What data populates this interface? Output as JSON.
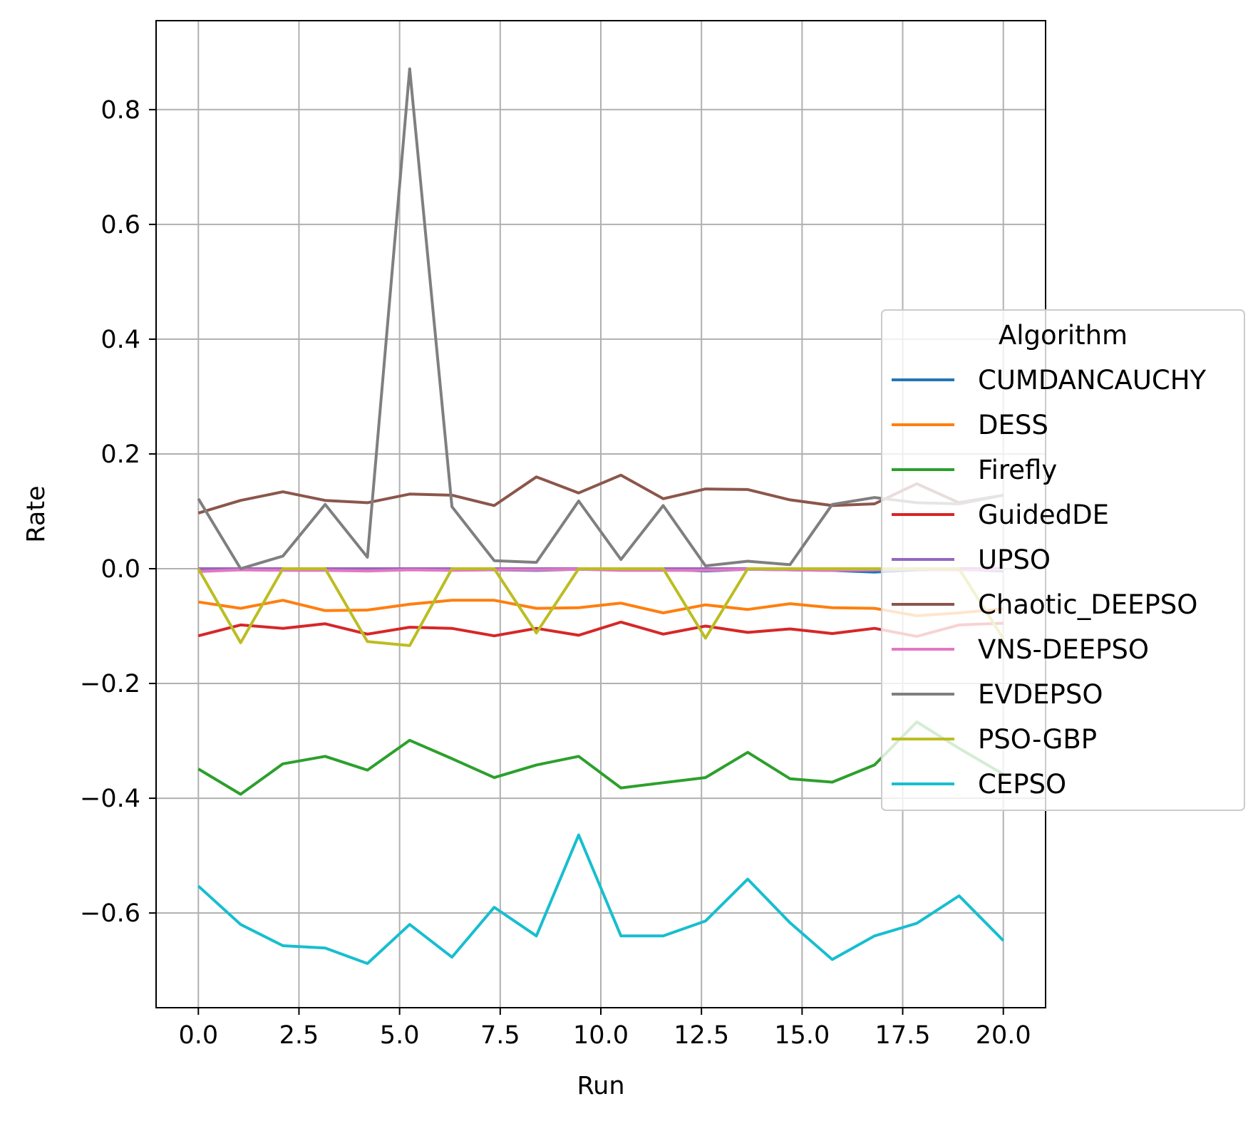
{
  "chart_data": {
    "type": "line",
    "xlabel": "Run",
    "ylabel": "Rate",
    "xlim": [
      -1.05,
      21.05
    ],
    "ylim": [
      -0.765,
      0.955
    ],
    "xticks": [
      0.0,
      2.5,
      5.0,
      7.5,
      10.0,
      12.5,
      15.0,
      17.5,
      20.0
    ],
    "xtick_labels": [
      "0.0",
      "2.5",
      "5.0",
      "7.5",
      "10.0",
      "12.5",
      "15.0",
      "17.5",
      "20.0"
    ],
    "yticks": [
      -0.6,
      -0.4,
      -0.2,
      0.0,
      0.2,
      0.4,
      0.6,
      0.8
    ],
    "ytick_labels": [
      "−0.6",
      "−0.4",
      "−0.2",
      "0.0",
      "0.2",
      "0.4",
      "0.6",
      "0.8"
    ],
    "grid": true,
    "legend": {
      "title": "Algorithm",
      "placement": "center-right"
    },
    "x": [
      0,
      1.05,
      2.1,
      3.15,
      4.2,
      5.25,
      6.3,
      7.35,
      8.4,
      9.45,
      10.5,
      11.55,
      12.6,
      13.65,
      14.7,
      15.75,
      16.8,
      17.85,
      18.9,
      20.0
    ],
    "series": [
      {
        "name": "CUMDANCAUCHY",
        "color": "#1f77b4",
        "values": [
          -0.002,
          -0.001,
          -0.002,
          -0.001,
          -0.002,
          0.0,
          -0.001,
          -0.002,
          -0.003,
          -0.001,
          -0.002,
          -0.001,
          -0.004,
          -0.001,
          -0.002,
          -0.003,
          -0.006,
          -0.002,
          -0.001,
          -0.004
        ]
      },
      {
        "name": "DESS",
        "color": "#ff7f0e",
        "values": [
          -0.058,
          -0.069,
          -0.055,
          -0.073,
          -0.072,
          -0.062,
          -0.055,
          -0.055,
          -0.069,
          -0.068,
          -0.06,
          -0.077,
          -0.063,
          -0.071,
          -0.061,
          -0.068,
          -0.069,
          -0.082,
          -0.077,
          -0.07
        ]
      },
      {
        "name": "Firefly",
        "color": "#2ca02c",
        "values": [
          -0.349,
          -0.393,
          -0.34,
          -0.327,
          -0.351,
          -0.299,
          -0.331,
          -0.364,
          -0.342,
          -0.327,
          -0.382,
          -0.373,
          -0.364,
          -0.32,
          -0.366,
          -0.372,
          -0.342,
          -0.267,
          -0.313,
          -0.358
        ]
      },
      {
        "name": "GuidedDE",
        "color": "#d62728",
        "values": [
          -0.117,
          -0.098,
          -0.104,
          -0.096,
          -0.114,
          -0.102,
          -0.104,
          -0.117,
          -0.104,
          -0.116,
          -0.093,
          -0.114,
          -0.1,
          -0.111,
          -0.105,
          -0.113,
          -0.104,
          -0.118,
          -0.098,
          -0.095
        ]
      },
      {
        "name": "UPSO",
        "color": "#9467bd",
        "values": [
          0.0,
          0.0,
          0.0,
          0.0,
          0.0,
          0.0,
          0.0,
          0.0,
          0.0,
          0.0,
          0.0,
          0.0,
          0.0,
          0.0,
          0.0,
          0.0,
          0.0,
          0.0,
          0.0,
          0.0
        ]
      },
      {
        "name": "Chaotic_DEEPSO",
        "color": "#8c564b",
        "values": [
          0.097,
          0.119,
          0.134,
          0.119,
          0.115,
          0.13,
          0.128,
          0.11,
          0.16,
          0.132,
          0.163,
          0.122,
          0.139,
          0.138,
          0.12,
          0.11,
          0.113,
          0.148,
          0.115,
          0.128
        ]
      },
      {
        "name": "VNS-DEEPSO",
        "color": "#e377c2",
        "values": [
          -0.005,
          -0.002,
          -0.003,
          -0.003,
          -0.004,
          -0.002,
          -0.003,
          -0.002,
          -0.002,
          -0.001,
          -0.003,
          -0.003,
          -0.003,
          -0.001,
          -0.002,
          -0.003,
          -0.002,
          -0.001,
          -0.002,
          -0.002
        ]
      },
      {
        "name": "EVDEPSO",
        "color": "#7f7f7f",
        "values": [
          0.122,
          0.0,
          0.022,
          0.112,
          0.02,
          0.871,
          0.108,
          0.014,
          0.011,
          0.118,
          0.016,
          0.11,
          0.005,
          0.013,
          0.007,
          0.112,
          0.124,
          0.115,
          0.113,
          0.128
        ]
      },
      {
        "name": "PSO-GBP",
        "color": "#bcbd22",
        "values": [
          0.0,
          -0.129,
          0.0,
          0.0,
          -0.127,
          -0.134,
          0.0,
          0.0,
          -0.112,
          0.0,
          0.0,
          0.0,
          -0.121,
          0.0,
          0.0,
          0.0,
          0.0,
          0.0,
          0.0,
          -0.122
        ]
      },
      {
        "name": "CEPSO",
        "color": "#17becf",
        "values": [
          -0.553,
          -0.62,
          -0.657,
          -0.661,
          -0.688,
          -0.62,
          -0.677,
          -0.59,
          -0.64,
          -0.464,
          -0.64,
          -0.64,
          -0.614,
          -0.541,
          -0.617,
          -0.681,
          -0.64,
          -0.618,
          -0.57,
          -0.648
        ]
      }
    ]
  }
}
